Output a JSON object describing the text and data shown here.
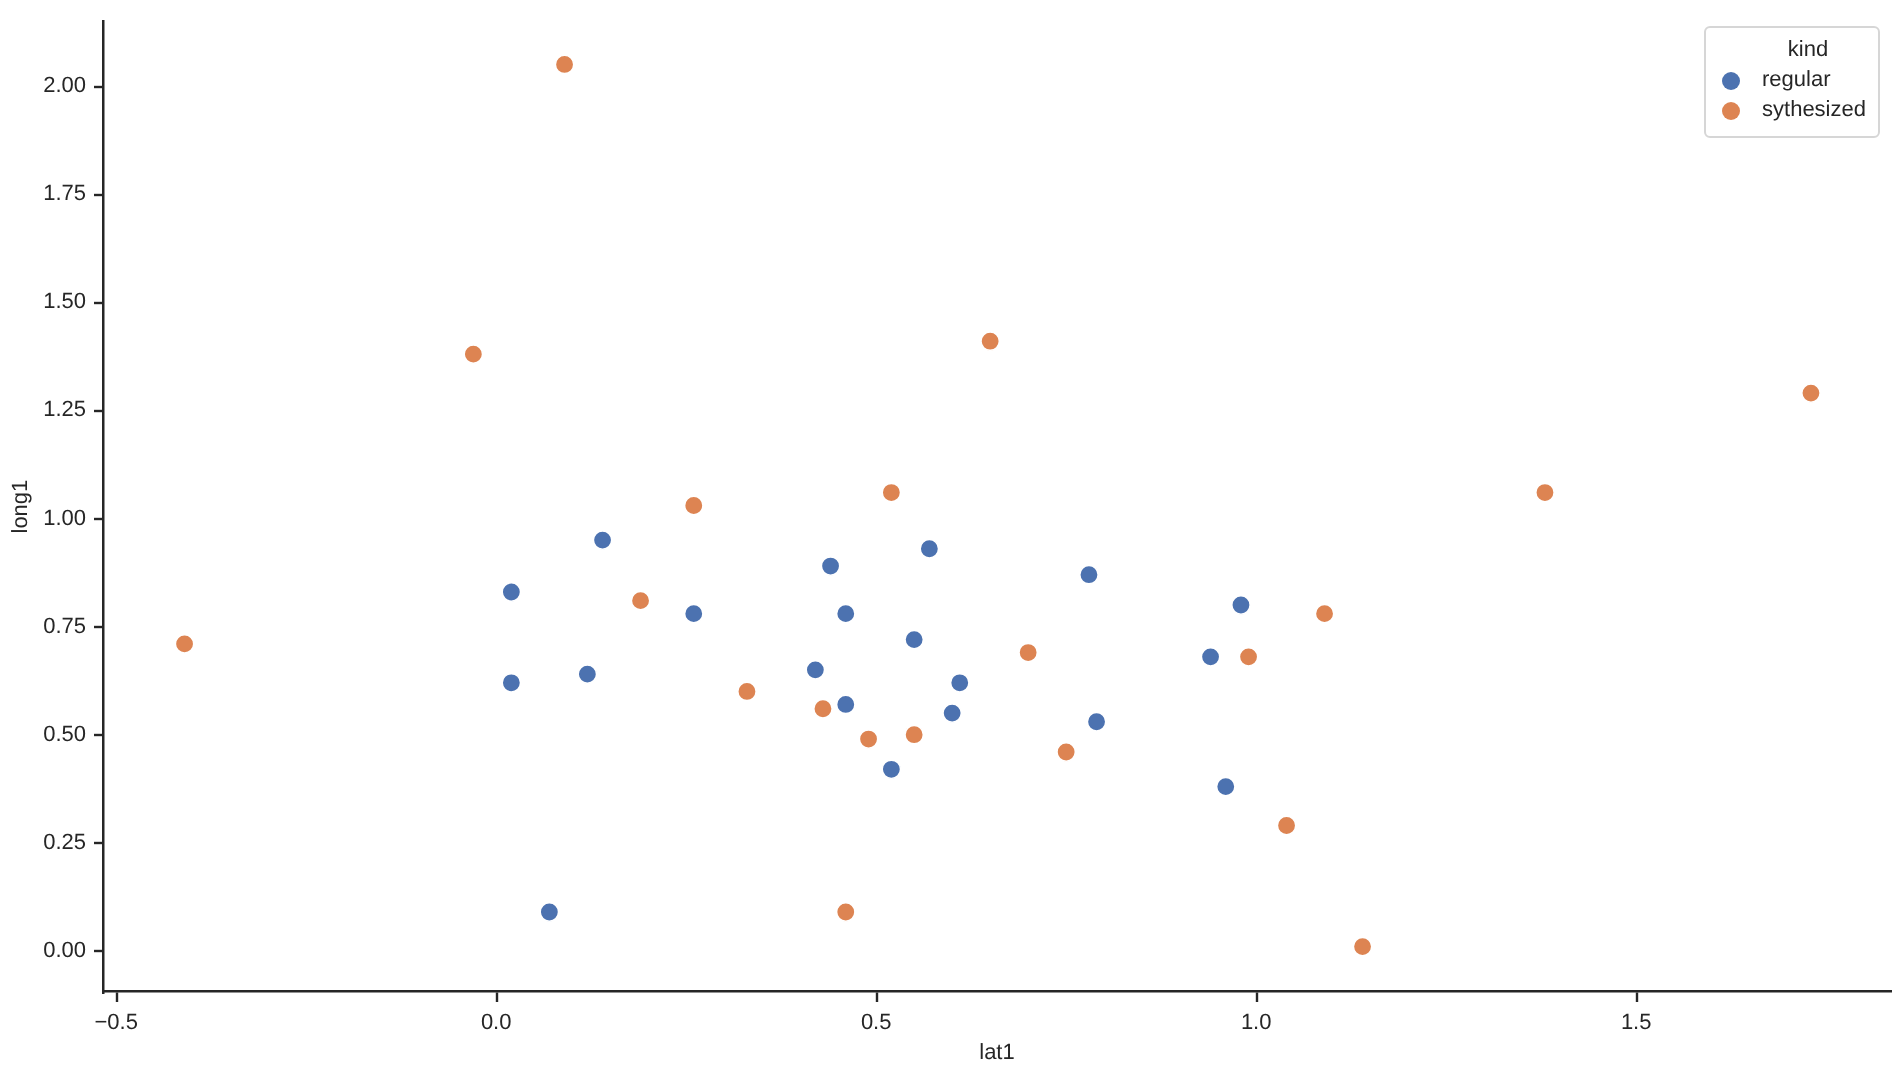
{
  "chart_data": {
    "type": "scatter",
    "xlabel": "lat1",
    "ylabel": "long1",
    "legend_title": "kind",
    "legend": "top right",
    "marker": "circle",
    "grid": false,
    "xlim": [
      -0.516,
      1.834
    ],
    "ylim": [
      -0.095,
      2.15
    ],
    "xticks": [
      {
        "value": -0.5,
        "label": "−0.5"
      },
      {
        "value": 0,
        "label": "0.0"
      },
      0.5,
      {
        "value": 1,
        "label": "1.0"
      },
      1.5
    ],
    "yticks": [
      {
        "value": 0,
        "label": "0.00"
      },
      0.25,
      {
        "value": 0.5,
        "label": "0.50"
      },
      0.75,
      {
        "value": 1,
        "label": "1.00"
      },
      1.25,
      {
        "value": 1.5,
        "label": "1.50"
      },
      1.75,
      {
        "value": 2,
        "label": "2.00"
      }
    ],
    "series": [
      {
        "name": "regular",
        "color": "#4c72b0",
        "x": [
          0.14,
          0.02,
          0.02,
          0.12,
          0.26,
          0.44,
          0.57,
          0.46,
          0.55,
          0.42,
          0.46,
          0.52,
          0.07,
          0.61,
          0.6,
          0.78,
          0.79,
          0.94,
          0.98,
          0.96
        ],
        "values": [
          0.95,
          0.83,
          0.62,
          0.64,
          0.78,
          0.89,
          0.93,
          0.78,
          0.72,
          0.65,
          0.57,
          0.42,
          0.09,
          0.62,
          0.55,
          0.87,
          0.53,
          0.68,
          0.8,
          0.38
        ]
      },
      {
        "name": "sythesized",
        "color": "#dd8452",
        "x": [
          0.09,
          -0.03,
          0.26,
          0.52,
          0.65,
          1.73,
          1.38,
          -0.41,
          0.19,
          0.33,
          0.43,
          0.49,
          0.55,
          0.46,
          0.7,
          0.75,
          0.99,
          1.09,
          1.04,
          1.14
        ],
        "values": [
          2.05,
          1.38,
          1.03,
          1.06,
          1.41,
          1.29,
          1.06,
          0.71,
          0.81,
          0.6,
          0.56,
          0.49,
          0.5,
          0.09,
          0.69,
          0.46,
          0.68,
          0.78,
          0.29,
          0.01
        ]
      }
    ]
  }
}
